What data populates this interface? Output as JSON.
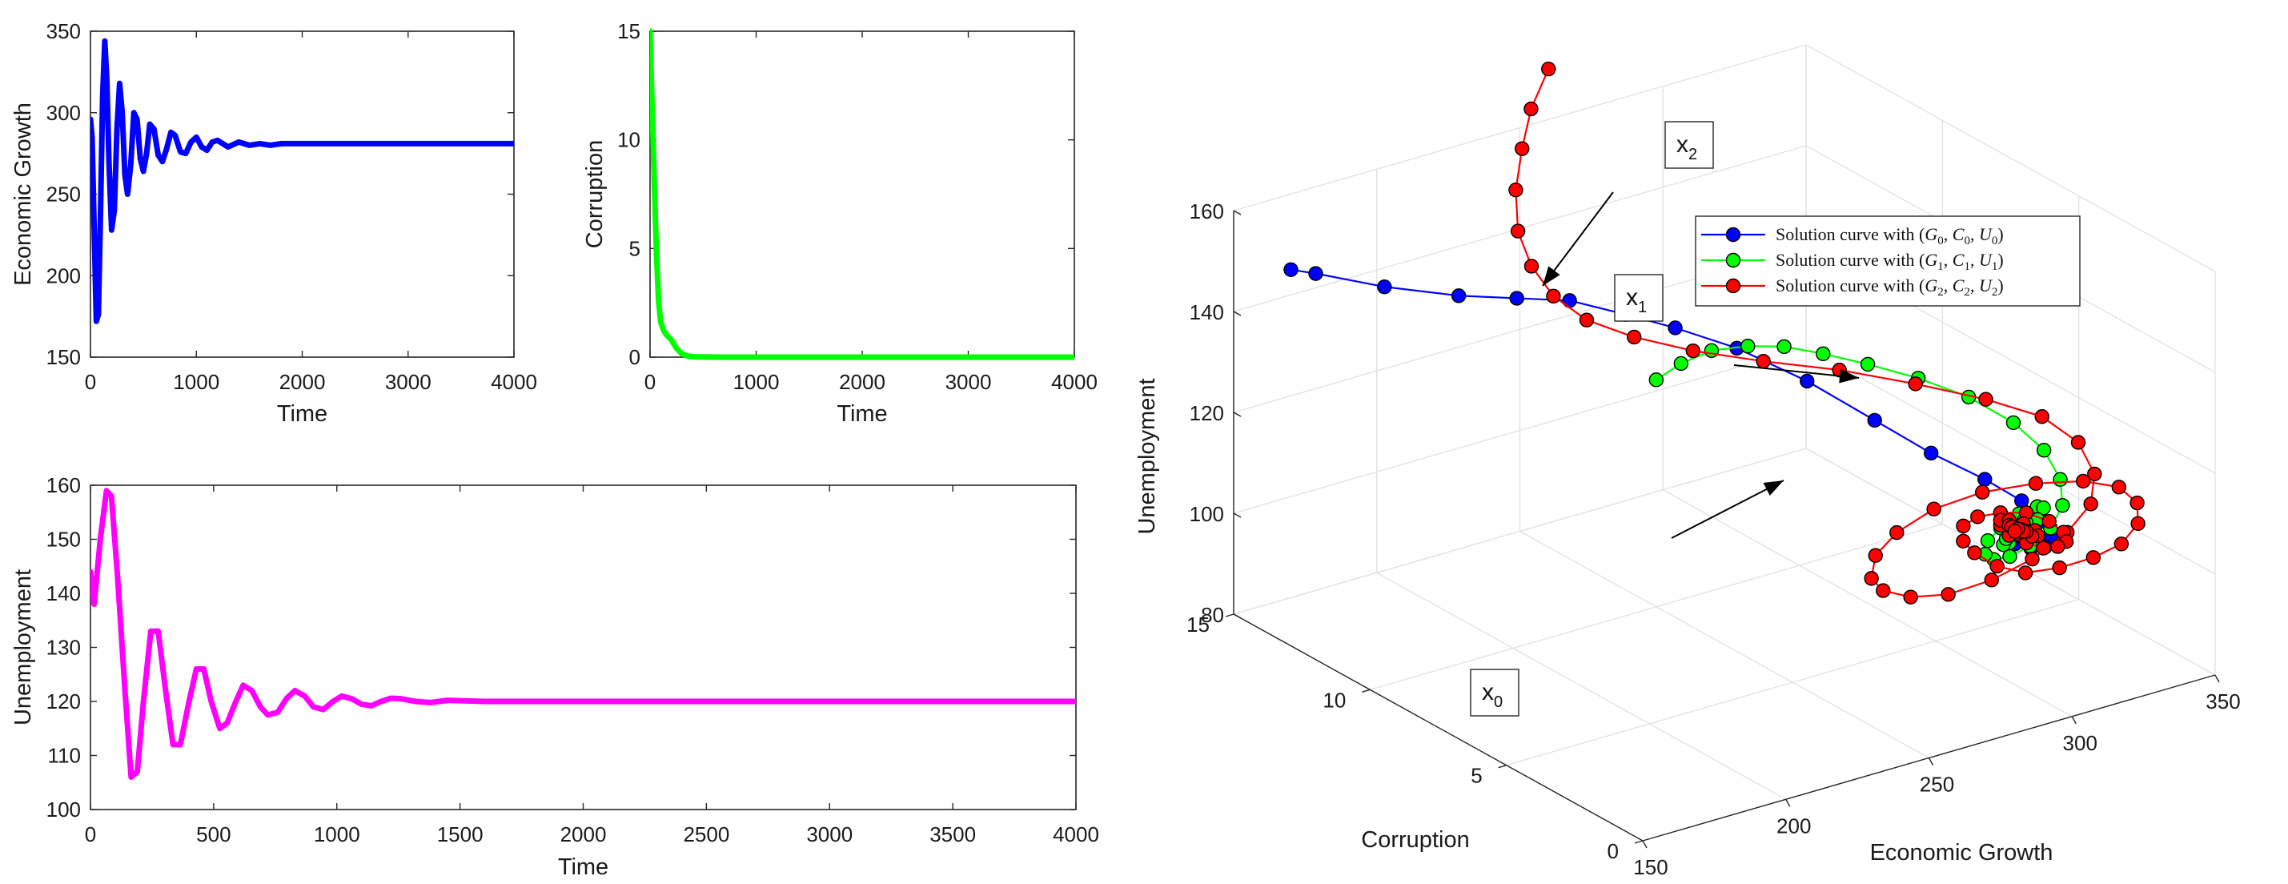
{
  "chart_data": [
    {
      "type": "line",
      "ylabel": "Economic Growth",
      "xlabel": "Time",
      "xlim": [
        0,
        4000
      ],
      "ylim": [
        150,
        350
      ],
      "xticks": [
        "0",
        "1000",
        "2000",
        "3000",
        "4000"
      ],
      "yticks": [
        "150",
        "200",
        "250",
        "300",
        "350"
      ],
      "color": "#0000ff",
      "series": [
        {
          "x": [
            0,
            15,
            35,
            55,
            75,
            95,
            115,
            135,
            155,
            175,
            200,
            225,
            250,
            275,
            300,
            325,
            350,
            380,
            410,
            440,
            470,
            500,
            530,
            560,
            600,
            640,
            680,
            720,
            760,
            800,
            850,
            900,
            950,
            1000,
            1050,
            1100,
            1150,
            1200,
            1300,
            1400,
            1500,
            1600,
            1700,
            1800,
            2000,
            2500,
            3000,
            3500,
            4000
          ],
          "y": [
            296,
            285,
            230,
            172,
            176,
            240,
            310,
            344,
            320,
            270,
            228,
            240,
            290,
            318,
            300,
            262,
            250,
            268,
            300,
            296,
            272,
            264,
            275,
            293,
            290,
            274,
            270,
            278,
            288,
            286,
            276,
            275,
            282,
            285,
            279,
            277,
            282,
            283,
            279,
            282,
            280,
            281,
            280,
            281,
            281,
            281,
            281,
            281,
            281
          ]
        }
      ]
    },
    {
      "type": "line",
      "ylabel": "Corruption",
      "xlabel": "Time",
      "xlim": [
        0,
        4000
      ],
      "ylim": [
        0,
        15
      ],
      "xticks": [
        "0",
        "1000",
        "2000",
        "3000",
        "4000"
      ],
      "yticks": [
        "0",
        "5",
        "10",
        "15"
      ],
      "color": "#00ff00",
      "series": [
        {
          "x": [
            0,
            20,
            40,
            60,
            80,
            100,
            130,
            160,
            200,
            250,
            300,
            350,
            400,
            500,
            700,
            1000,
            2000,
            3000,
            4000
          ],
          "y": [
            15.0,
            11.5,
            8.0,
            4.8,
            2.6,
            1.6,
            1.2,
            1.0,
            0.8,
            0.4,
            0.15,
            0.06,
            0.02,
            0.01,
            0,
            0,
            0,
            0,
            0
          ]
        }
      ]
    },
    {
      "type": "line",
      "ylabel": "Unemployment",
      "xlabel": "Time",
      "xlim": [
        0,
        4000
      ],
      "ylim": [
        100,
        160
      ],
      "xticks": [
        "0",
        "500",
        "1000",
        "1500",
        "2000",
        "2500",
        "3000",
        "3500",
        "4000"
      ],
      "yticks": [
        "100",
        "110",
        "120",
        "130",
        "140",
        "150",
        "160"
      ],
      "color": "#ff00ff",
      "series": [
        {
          "x": [
            0,
            15,
            40,
            65,
            85,
            110,
            140,
            165,
            190,
            215,
            245,
            275,
            305,
            335,
            365,
            400,
            430,
            460,
            490,
            525,
            555,
            590,
            620,
            655,
            690,
            720,
            760,
            795,
            830,
            870,
            905,
            945,
            985,
            1020,
            1060,
            1100,
            1140,
            1180,
            1220,
            1260,
            1320,
            1380,
            1450,
            1520,
            1600,
            1700,
            1800,
            2000,
            2500,
            3000,
            3500,
            4000
          ],
          "y": [
            144,
            138,
            150,
            159,
            158,
            143,
            122,
            106,
            107,
            120,
            133,
            133,
            122,
            112,
            112,
            120,
            126,
            126,
            120,
            115,
            116,
            120,
            123,
            122,
            119,
            117.5,
            118,
            120.5,
            122,
            121,
            119,
            118.5,
            120,
            121,
            120.5,
            119.5,
            119.2,
            120,
            120.6,
            120.5,
            120,
            119.8,
            120.2,
            120.1,
            120,
            120,
            120,
            120,
            120,
            120,
            120,
            120
          ]
        }
      ]
    },
    {
      "type": "scatter",
      "subtype": "3d-line",
      "xlabel": "Economic Growth",
      "ylabel": "Corruption",
      "zlabel": "Unemployment",
      "xlim": [
        150,
        350
      ],
      "ylim": [
        0,
        15
      ],
      "zlim": [
        80,
        160
      ],
      "xticks": [
        "150",
        "200",
        "250",
        "300",
        "350"
      ],
      "yticks": [
        "0",
        "5",
        "10",
        "15"
      ],
      "zticks": [
        "80",
        "100",
        "120",
        "140",
        "160"
      ],
      "grid": true,
      "legend_position": "top-right",
      "legend": [
        {
          "prefix": "Solution curve with (",
          "v1": "G",
          "s1": "0",
          "v2": "C",
          "s2": "0",
          "v3": "U",
          "s3": "0",
          "suffix": ")",
          "color": "#0000ff"
        },
        {
          "prefix": "Solution curve with (",
          "v1": "G",
          "s1": "1",
          "v2": "C",
          "s2": "1",
          "v3": "U",
          "s3": "1",
          "suffix": ")",
          "color": "#00ff00"
        },
        {
          "prefix": "Solution curve with (",
          "v1": "G",
          "s1": "2",
          "v2": "C",
          "s2": "2",
          "v3": "U",
          "s3": "2",
          "suffix": ")",
          "color": "#ff0000"
        }
      ],
      "annotations": [
        {
          "text": "x",
          "sub": "0"
        },
        {
          "text": "x",
          "sub": "1"
        },
        {
          "text": "x",
          "sub": "2"
        }
      ],
      "series": [
        {
          "name": "Solution curve with (G0,C0,U0)",
          "color": "#0000ff",
          "G": [
            170,
            172,
            176,
            181,
            187,
            194,
            201,
            209,
            221,
            236,
            252,
            266,
            280,
            290,
            295,
            296,
            293,
            287,
            281,
            278,
            279,
            283,
            285,
            283,
            280,
            279,
            281,
            282,
            281,
            280
          ],
          "C": [
            15,
            14.3,
            12.2,
            10.0,
            8.5,
            7.3,
            6.0,
            5.0,
            4.0,
            3.0,
            2.2,
            1.6,
            1.1,
            0.8,
            0.5,
            0.35,
            0.25,
            0.15,
            0.1,
            0.05,
            0.02,
            0,
            0,
            0,
            0,
            0,
            0,
            0,
            0,
            0
          ],
          "U": [
            145,
            146,
            149,
            153,
            156,
            158,
            158,
            157,
            154,
            148,
            140,
            133,
            127,
            122,
            118,
            115,
            114,
            115,
            117,
            120,
            122,
            123,
            122,
            120,
            119,
            118.5,
            119.5,
            120.5,
            120.3,
            120
          ]
        },
        {
          "name": "Solution curve with (G1,C1,U1)",
          "color": "#00ff00",
          "G": [
            250,
            252,
            256,
            262,
            268,
            274,
            282,
            292,
            302,
            310,
            314,
            314,
            310,
            302,
            292,
            283,
            276,
            272,
            272,
            276,
            282,
            288,
            290,
            288,
            283,
            278,
            276,
            277,
            280,
            283,
            284,
            283,
            281,
            279,
            280,
            281
          ],
          "C": [
            10,
            9.3,
            8.6,
            7.9,
            7.2,
            6.4,
            5.6,
            4.8,
            4.0,
            3.2,
            2.5,
            1.9,
            1.4,
            1.0,
            0.7,
            0.5,
            0.35,
            0.25,
            0.15,
            0.1,
            0.05,
            0.02,
            0,
            0,
            0,
            0,
            0,
            0,
            0,
            0,
            0,
            0,
            0,
            0,
            0,
            0
          ],
          "U": [
            125,
            130,
            134,
            136,
            137,
            137,
            136,
            134,
            131,
            127,
            123,
            119,
            116,
            114,
            113,
            113,
            114,
            116,
            119,
            121,
            123,
            123.5,
            123,
            121,
            119,
            118,
            118,
            119,
            120.5,
            121.5,
            121,
            120,
            119.3,
            119.5,
            120.3,
            120
          ]
        },
        {
          "name": "Solution curve with (G2,C2,U2)",
          "color": "#ff0000",
          "G": [
            260,
            252,
            246,
            240,
            236,
            235,
            236,
            240,
            248,
            260,
            276,
            294,
            312,
            328,
            340,
            346,
            345,
            338,
            325,
            308,
            290,
            272,
            256,
            244,
            238,
            238,
            244,
            256,
            272,
            290,
            306,
            318,
            324,
            324,
            318,
            308,
            296,
            284,
            274,
            266,
            262,
            262,
            267,
            275,
            284,
            292,
            297,
            298,
            295,
            290,
            284,
            278,
            275,
            275,
            278,
            283,
            287,
            288,
            286,
            282,
            279,
            278,
            279,
            282,
            284,
            283,
            281,
            280
          ],
          "C": [
            15,
            14.8,
            14.5,
            14.1,
            13.6,
            13.0,
            12.3,
            11.5,
            10.6,
            9.7,
            8.8,
            7.9,
            7.0,
            6.1,
            5.3,
            4.6,
            3.9,
            3.3,
            2.8,
            2.3,
            1.9,
            1.6,
            1.3,
            1.05,
            0.85,
            0.7,
            0.55,
            0.45,
            0.35,
            0.28,
            0.22,
            0.17,
            0.13,
            0.1,
            0.08,
            0.06,
            0.04,
            0.03,
            0.02,
            0.01,
            0,
            0,
            0,
            0,
            0,
            0,
            0,
            0,
            0,
            0,
            0,
            0,
            0,
            0,
            0,
            0,
            0,
            0,
            0,
            0,
            0,
            0,
            0,
            0,
            0,
            0,
            0,
            0
          ],
          "U": [
            170,
            164,
            158,
            152,
            146,
            141,
            137,
            134,
            132,
            130,
            128,
            126,
            123,
            120,
            117,
            113,
            109,
            106,
            104,
            103,
            103,
            104,
            107,
            111,
            115,
            120,
            124,
            127,
            128,
            127,
            125,
            122,
            118,
            114,
            111,
            110,
            110,
            111,
            114,
            118,
            121,
            124,
            125,
            124.5,
            123,
            120,
            117,
            115,
            114.5,
            115,
            117,
            119.5,
            122,
            123,
            122.5,
            121,
            119,
            117.8,
            118,
            119.5,
            121,
            121.5,
            121,
            120,
            119.3,
            119.5,
            120.3,
            120
          ]
        }
      ]
    }
  ]
}
